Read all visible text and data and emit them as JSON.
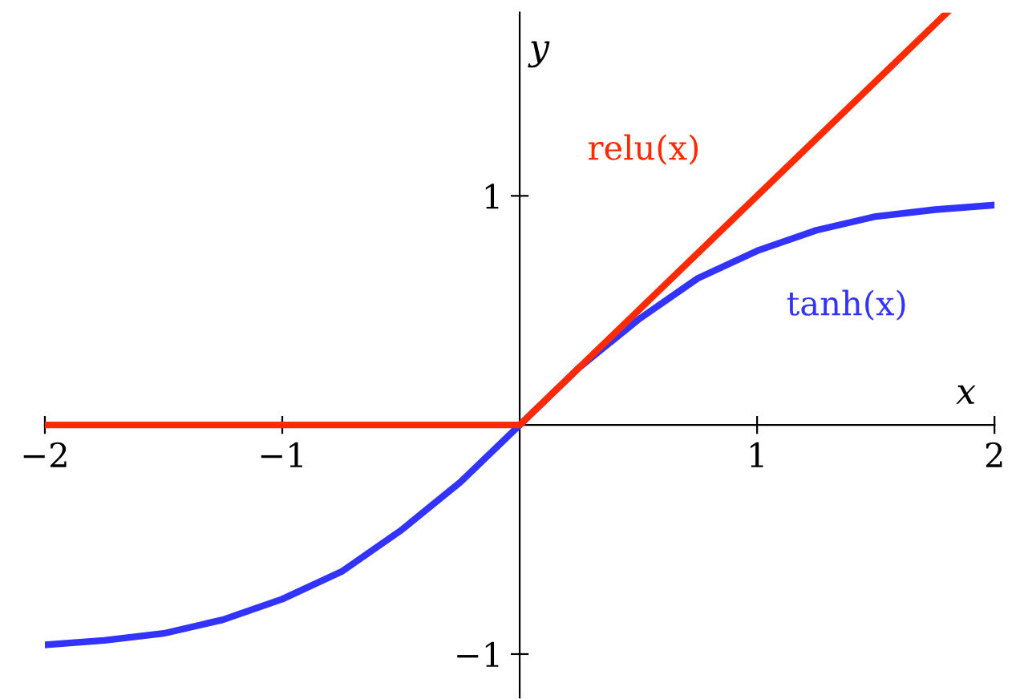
{
  "chart_data": {
    "type": "line",
    "xlabel": "x",
    "ylabel": "y",
    "series": [
      {
        "color": "#3333ff",
        "x": [
          -2,
          -1.75,
          -1.5,
          -1.25,
          -1,
          -0.75,
          -0.5,
          -0.25,
          0,
          0.25,
          0.5,
          0.75,
          1,
          1.25,
          1.5,
          1.75,
          2
        ],
        "values": [
          -0.96,
          -0.94,
          -0.91,
          -0.85,
          -0.76,
          -0.64,
          -0.46,
          -0.25,
          0,
          0.25,
          0.46,
          0.64,
          0.76,
          0.85,
          0.91,
          0.94,
          0.96
        ]
      },
      {
        "color": "#ff2a00",
        "x": [
          -2,
          0,
          1.8
        ],
        "values": [
          0,
          0,
          1.8
        ]
      }
    ],
    "annotations": [
      "tanh(x)",
      "relu(x)"
    ],
    "xlim": [
      -2,
      2
    ],
    "ylim": [
      -1.19,
      1.8
    ],
    "xticks": [
      {
        "value": -2,
        "label": "−2"
      },
      {
        "value": -1,
        "label": "−1"
      },
      1,
      2
    ],
    "yticks": [
      {
        "value": -1,
        "label": "−1"
      },
      1
    ],
    "grid": false,
    "legend": false,
    "marker": "none",
    "line_style": "solid"
  }
}
